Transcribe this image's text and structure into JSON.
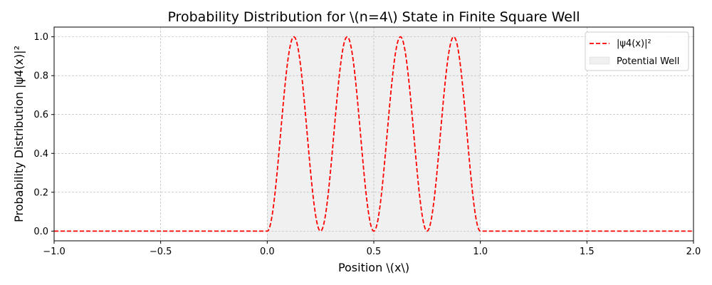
{
  "chart_data": {
    "type": "line",
    "title": "Probability Distribution for \\(n=4\\) State in Finite Square Well",
    "xlabel": "Position \\(x\\)",
    "ylabel": "Probability Distribution |ψ4(x)|²",
    "xlim": [
      -1.0,
      2.0
    ],
    "ylim": [
      -0.05,
      1.05
    ],
    "x_ticks": [
      "−1.0",
      "−0.5",
      "0.0",
      "0.5",
      "1.0",
      "1.5",
      "2.0"
    ],
    "y_ticks": [
      "0.0",
      "0.2",
      "0.4",
      "0.6",
      "0.8",
      "1.0"
    ],
    "grid": true,
    "legend_position": "top-right",
    "series": [
      {
        "name": "|ψ4(x)|²",
        "style": "dashed",
        "color": "#ff0000",
        "function": "sin(4*pi*x)^2 for 0<=x<=1, else 0",
        "x": [
          -1.0,
          0.0,
          0.125,
          0.25,
          0.375,
          0.5,
          0.625,
          0.75,
          0.875,
          1.0,
          2.0
        ],
        "y": [
          0.0,
          0.0,
          1.0,
          0.0,
          1.0,
          0.0,
          1.0,
          0.0,
          1.0,
          0.0,
          0.0
        ]
      }
    ],
    "regions": [
      {
        "name": "Potential Well",
        "x_start": 0.0,
        "x_end": 1.0,
        "color": "#808080"
      }
    ]
  }
}
